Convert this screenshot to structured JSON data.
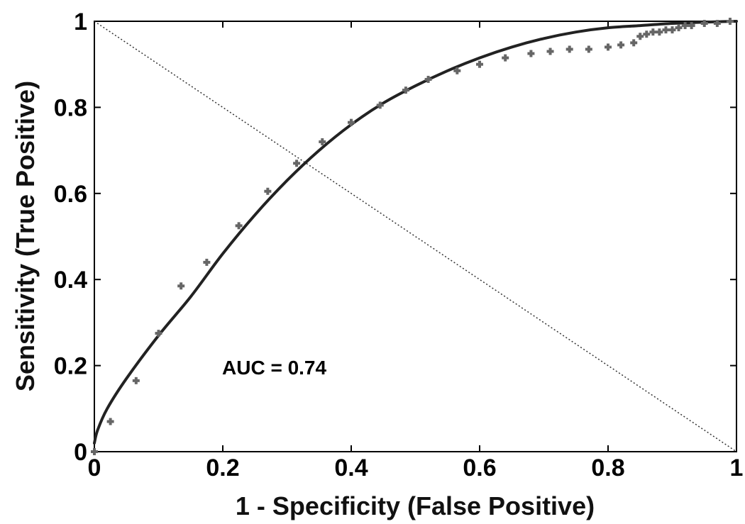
{
  "chart_data": {
    "type": "line",
    "title": "",
    "xlabel": "1 - Specificity (False Positive)",
    "ylabel": "Sensitivity (True Positive)",
    "xlim": [
      0,
      1
    ],
    "ylim": [
      0,
      1
    ],
    "x_ticks": [
      "0",
      "0.2",
      "0.4",
      "0.6",
      "0.8",
      "1"
    ],
    "y_ticks": [
      "0",
      "0.2",
      "0.4",
      "0.6",
      "0.8",
      "1"
    ],
    "grid": false,
    "annotation": "AUC = 0.74",
    "colors": {
      "fitted": "#222222",
      "empirical": "#666666",
      "reference": "#333333"
    },
    "series": [
      {
        "kind": "fitted-curve",
        "x": [
          0,
          0.005,
          0.02,
          0.05,
          0.1,
          0.15,
          0.2,
          0.25,
          0.3,
          0.35,
          0.4,
          0.45,
          0.5,
          0.55,
          0.6,
          0.65,
          0.7,
          0.75,
          0.8,
          0.85,
          0.9,
          0.95,
          1.0
        ],
        "y": [
          0.02,
          0.05,
          0.1,
          0.17,
          0.27,
          0.36,
          0.46,
          0.55,
          0.63,
          0.7,
          0.76,
          0.81,
          0.85,
          0.885,
          0.915,
          0.94,
          0.96,
          0.975,
          0.985,
          0.99,
          0.995,
          0.998,
          1.0
        ]
      },
      {
        "kind": "empirical-points",
        "x": [
          0.0,
          0.025,
          0.065,
          0.1,
          0.135,
          0.175,
          0.225,
          0.27,
          0.315,
          0.355,
          0.4,
          0.445,
          0.485,
          0.52,
          0.565,
          0.6,
          0.64,
          0.68,
          0.71,
          0.74,
          0.77,
          0.8,
          0.82,
          0.84,
          0.85,
          0.86,
          0.87,
          0.88,
          0.89,
          0.9,
          0.91,
          0.92,
          0.93,
          0.95,
          0.97,
          0.99
        ],
        "y": [
          0.0,
          0.07,
          0.165,
          0.275,
          0.385,
          0.44,
          0.525,
          0.605,
          0.67,
          0.72,
          0.765,
          0.805,
          0.84,
          0.865,
          0.885,
          0.9,
          0.915,
          0.925,
          0.93,
          0.935,
          0.935,
          0.94,
          0.945,
          0.95,
          0.965,
          0.97,
          0.975,
          0.975,
          0.98,
          0.98,
          0.985,
          0.99,
          0.99,
          0.995,
          0.995,
          1.0
        ]
      },
      {
        "kind": "reference-line",
        "x": [
          0,
          1
        ],
        "y": [
          1,
          0
        ]
      }
    ]
  }
}
